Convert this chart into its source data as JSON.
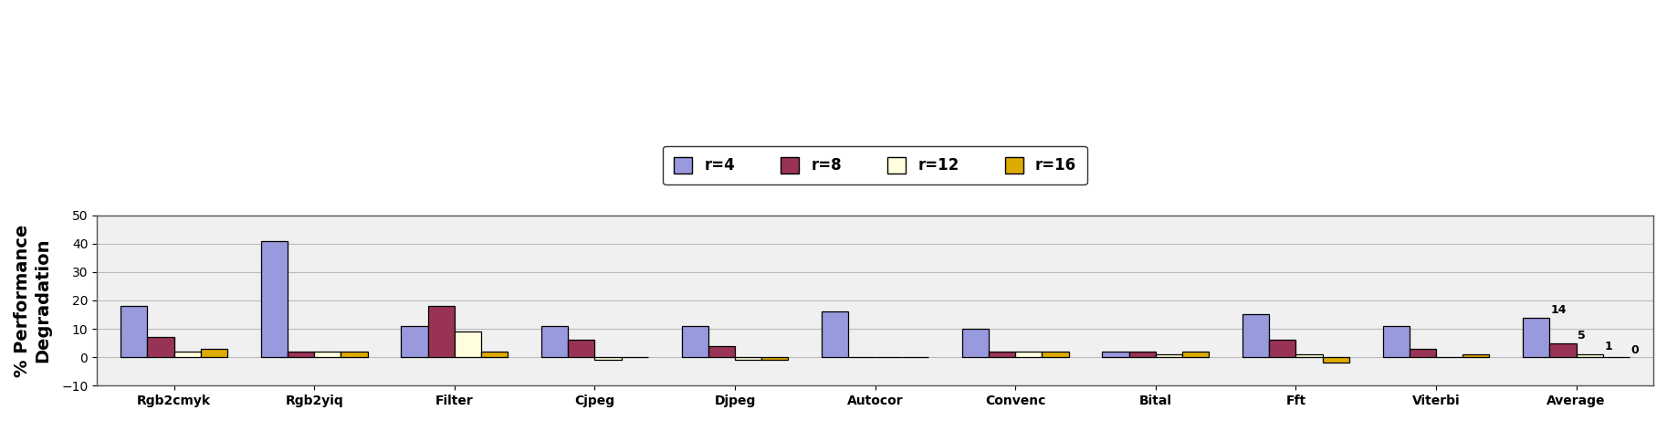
{
  "categories": [
    "Rgb2cmyk",
    "Rgb2yiq",
    "Filter",
    "Cjpeg",
    "Djpeg",
    "Autocor",
    "Convenc",
    "Bital",
    "Fft",
    "Viterbi",
    "Average"
  ],
  "series": {
    "r=4": [
      18,
      41,
      11,
      11,
      11,
      16,
      10,
      2,
      15,
      11,
      14
    ],
    "r=8": [
      7,
      2,
      18,
      6,
      4,
      0,
      2,
      2,
      6,
      3,
      5
    ],
    "r=12": [
      2,
      2,
      9,
      -1,
      -1,
      0,
      2,
      1,
      1,
      0,
      1
    ],
    "r=16": [
      3,
      2,
      2,
      0,
      -1,
      0,
      2,
      2,
      -2,
      1,
      0
    ]
  },
  "colors": {
    "r=4": "#9999dd",
    "r=8": "#993355",
    "r=12": "#ffffdd",
    "r=16": "#ddaa00"
  },
  "bar_edgecolor": "#000000",
  "ylim": [
    -10,
    50
  ],
  "yticks": [
    -10,
    0,
    10,
    20,
    30,
    40,
    50
  ],
  "ylabel": "% Performance\nDegradation",
  "legend_labels": [
    "r=4",
    "r=8",
    "r=12",
    "r=16"
  ],
  "annotations": {
    "Average": {
      "r=4": "14",
      "r=8": "5",
      "r=12": "1",
      "r=16": "0"
    }
  },
  "background_color": "#ffffff",
  "plot_bg_color": "#f0f0f0",
  "grid_color": "#bbbbbb",
  "title": ""
}
